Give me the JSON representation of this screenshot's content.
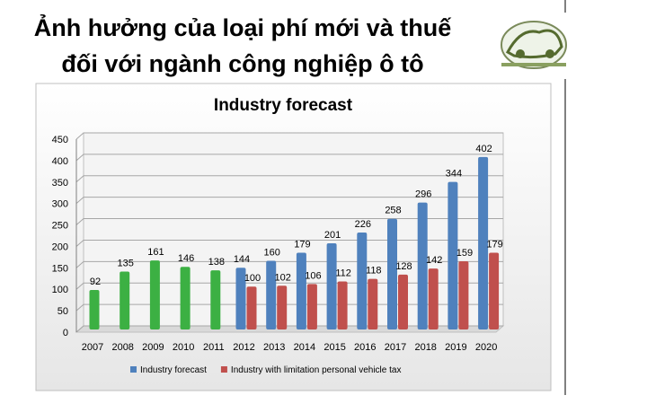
{
  "header": {
    "title": [
      "Ảnh hưởng của loại phí mới và thuế",
      "đối với ngành công nghiệp ô tô"
    ]
  },
  "chart_data": {
    "type": "bar",
    "title": "Industry forecast",
    "categories": [
      "2007",
      "2008",
      "2009",
      "2010",
      "2011",
      "2012",
      "2013",
      "2014",
      "2015",
      "2016",
      "2017",
      "2018",
      "2019",
      "2020"
    ],
    "series": [
      {
        "color": "#3cb043",
        "values": [
          92,
          135,
          161,
          146,
          138,
          null,
          null,
          null,
          null,
          null,
          null,
          null,
          null,
          null
        ]
      },
      {
        "name": "Industry forecast",
        "color": "#4f81bd",
        "values": [
          null,
          null,
          null,
          null,
          null,
          144,
          160,
          179,
          201,
          226,
          258,
          296,
          344,
          402
        ]
      },
      {
        "name": "Industry with limitation personal vehicle tax",
        "color": "#c0504d",
        "values": [
          null,
          null,
          null,
          null,
          null,
          100,
          102,
          106,
          112,
          118,
          128,
          142,
          159,
          179
        ]
      }
    ],
    "ylim": [
      0,
      450
    ],
    "yticks": [
      0,
      50,
      100,
      150,
      200,
      250,
      300,
      350,
      400,
      450
    ],
    "grid": true,
    "legend": "bottom"
  }
}
